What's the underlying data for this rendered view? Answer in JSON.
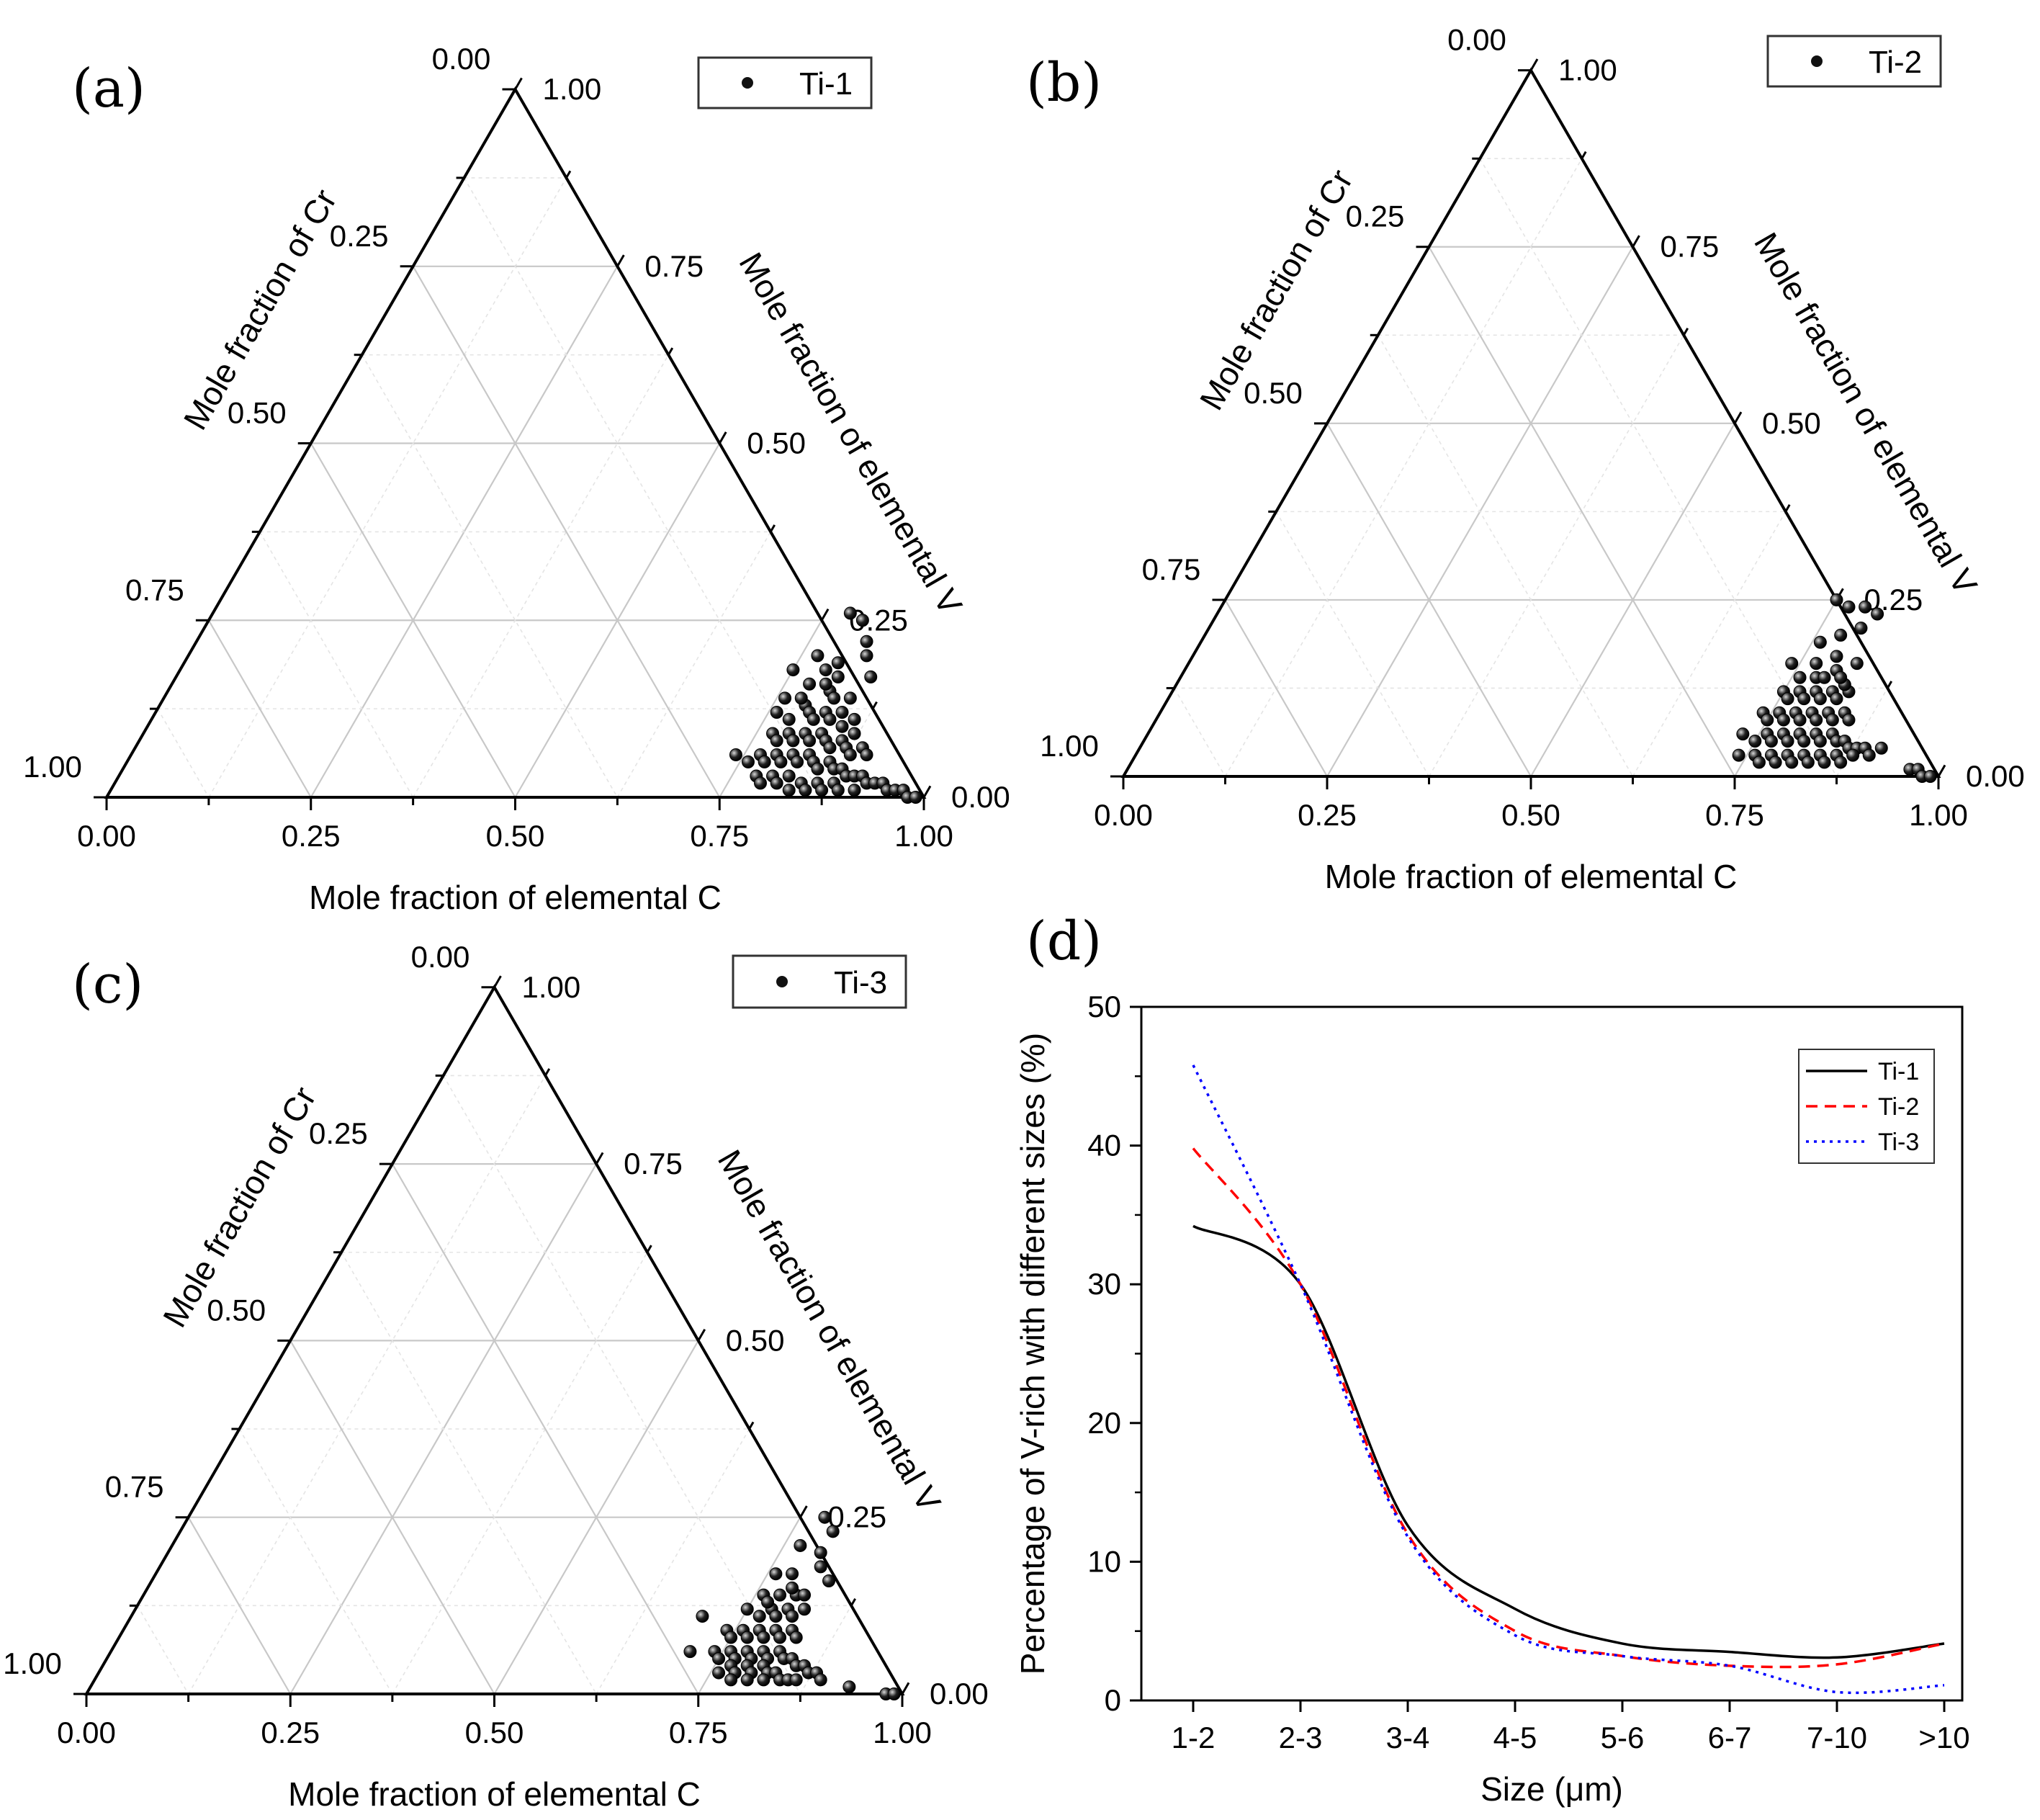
{
  "figure": {
    "panels": [
      "(a)",
      "(b)",
      "(c)",
      "(d)"
    ]
  },
  "chart_data": [
    {
      "panel": "(a)",
      "type": "scatter",
      "subtype": "ternary",
      "legend": [
        "Ti-1"
      ],
      "legend_placement": "top-right",
      "axis_labels": {
        "bottom": "Mole fraction of  elemental C",
        "left": "Mole fraction of Cr",
        "right": "Mole fraction of  elemental V"
      },
      "bottom_ticks": [
        "0.00",
        "0.25",
        "0.50",
        "0.75",
        "1.00"
      ],
      "left_ticks": [
        "0.00",
        "0.25",
        "0.50",
        "0.75",
        "1.00"
      ],
      "right_ticks": [
        "1.00",
        "0.75",
        "0.50",
        "0.25",
        "0.00"
      ],
      "grid": true,
      "points": [
        [
          0.78,
          0.26
        ],
        [
          0.8,
          0.25
        ],
        [
          0.82,
          0.22
        ],
        [
          0.75,
          0.18
        ],
        [
          0.78,
          0.16
        ],
        [
          0.8,
          0.19
        ],
        [
          0.83,
          0.2
        ],
        [
          0.81,
          0.15
        ],
        [
          0.84,
          0.14
        ],
        [
          0.85,
          0.17
        ],
        [
          0.76,
          0.12
        ],
        [
          0.78,
          0.11
        ],
        [
          0.79,
          0.13
        ],
        [
          0.8,
          0.12
        ],
        [
          0.81,
          0.11
        ],
        [
          0.82,
          0.12
        ],
        [
          0.83,
          0.11
        ],
        [
          0.84,
          0.12
        ],
        [
          0.85,
          0.1
        ],
        [
          0.86,
          0.11
        ],
        [
          0.87,
          0.09
        ],
        [
          0.77,
          0.09
        ],
        [
          0.78,
          0.08
        ],
        [
          0.79,
          0.09
        ],
        [
          0.8,
          0.08
        ],
        [
          0.81,
          0.09
        ],
        [
          0.82,
          0.08
        ],
        [
          0.83,
          0.09
        ],
        [
          0.84,
          0.08
        ],
        [
          0.85,
          0.07
        ],
        [
          0.86,
          0.08
        ],
        [
          0.87,
          0.07
        ],
        [
          0.88,
          0.06
        ],
        [
          0.89,
          0.07
        ],
        [
          0.9,
          0.06
        ],
        [
          0.74,
          0.06
        ],
        [
          0.76,
          0.05
        ],
        [
          0.77,
          0.06
        ],
        [
          0.78,
          0.05
        ],
        [
          0.79,
          0.06
        ],
        [
          0.8,
          0.05
        ],
        [
          0.81,
          0.06
        ],
        [
          0.82,
          0.05
        ],
        [
          0.83,
          0.06
        ],
        [
          0.84,
          0.05
        ],
        [
          0.85,
          0.04
        ],
        [
          0.86,
          0.05
        ],
        [
          0.87,
          0.04
        ],
        [
          0.88,
          0.04
        ],
        [
          0.89,
          0.03
        ],
        [
          0.9,
          0.03
        ],
        [
          0.91,
          0.03
        ],
        [
          0.92,
          0.02
        ],
        [
          0.93,
          0.02
        ],
        [
          0.94,
          0.02
        ],
        [
          0.95,
          0.01
        ],
        [
          0.96,
          0.01
        ],
        [
          0.97,
          0.01
        ],
        [
          0.98,
          0.0
        ],
        [
          0.99,
          0.0
        ],
        [
          0.78,
          0.03
        ],
        [
          0.8,
          0.03
        ],
        [
          0.82,
          0.03
        ],
        [
          0.84,
          0.02
        ],
        [
          0.86,
          0.02
        ],
        [
          0.88,
          0.02
        ],
        [
          0.79,
          0.02
        ],
        [
          0.81,
          0.02
        ],
        [
          0.83,
          0.01
        ],
        [
          0.85,
          0.01
        ],
        [
          0.87,
          0.01
        ],
        [
          0.89,
          0.01
        ],
        [
          0.91,
          0.01
        ],
        [
          0.76,
          0.14
        ],
        [
          0.78,
          0.14
        ],
        [
          0.8,
          0.16
        ],
        [
          0.82,
          0.14
        ],
        [
          0.79,
          0.18
        ],
        [
          0.81,
          0.17
        ],
        [
          0.77,
          0.2
        ]
      ]
    },
    {
      "panel": "(b)",
      "type": "scatter",
      "subtype": "ternary",
      "legend": [
        "Ti-2"
      ],
      "legend_placement": "top-right",
      "axis_labels": {
        "bottom": "Mole fraction of  elemental C",
        "left": "Mole fraction of Cr",
        "right": "Mole fraction of  elemental V"
      },
      "bottom_ticks": [
        "0.00",
        "0.25",
        "0.50",
        "0.75",
        "1.00"
      ],
      "left_ticks": [
        "0.00",
        "0.25",
        "0.50",
        "0.75",
        "1.00"
      ],
      "right_ticks": [
        "1.00",
        "0.75",
        "0.50",
        "0.25",
        "0.00"
      ],
      "grid": true,
      "points": [
        [
          0.75,
          0.25
        ],
        [
          0.77,
          0.24
        ],
        [
          0.79,
          0.24
        ],
        [
          0.81,
          0.23
        ],
        [
          0.76,
          0.19
        ],
        [
          0.78,
          0.2
        ],
        [
          0.8,
          0.21
        ],
        [
          0.74,
          0.16
        ],
        [
          0.77,
          0.16
        ],
        [
          0.79,
          0.17
        ],
        [
          0.82,
          0.16
        ],
        [
          0.75,
          0.12
        ],
        [
          0.76,
          0.11
        ],
        [
          0.77,
          0.12
        ],
        [
          0.78,
          0.11
        ],
        [
          0.79,
          0.12
        ],
        [
          0.8,
          0.11
        ],
        [
          0.81,
          0.12
        ],
        [
          0.82,
          0.11
        ],
        [
          0.83,
          0.12
        ],
        [
          0.74,
          0.09
        ],
        [
          0.75,
          0.08
        ],
        [
          0.76,
          0.09
        ],
        [
          0.77,
          0.08
        ],
        [
          0.78,
          0.09
        ],
        [
          0.79,
          0.08
        ],
        [
          0.8,
          0.09
        ],
        [
          0.81,
          0.08
        ],
        [
          0.82,
          0.09
        ],
        [
          0.83,
          0.08
        ],
        [
          0.84,
          0.09
        ],
        [
          0.85,
          0.08
        ],
        [
          0.73,
          0.06
        ],
        [
          0.75,
          0.05
        ],
        [
          0.76,
          0.06
        ],
        [
          0.77,
          0.05
        ],
        [
          0.78,
          0.06
        ],
        [
          0.79,
          0.05
        ],
        [
          0.8,
          0.06
        ],
        [
          0.81,
          0.05
        ],
        [
          0.82,
          0.06
        ],
        [
          0.83,
          0.05
        ],
        [
          0.84,
          0.06
        ],
        [
          0.85,
          0.05
        ],
        [
          0.86,
          0.05
        ],
        [
          0.87,
          0.04
        ],
        [
          0.88,
          0.04
        ],
        [
          0.89,
          0.04
        ],
        [
          0.9,
          0.03
        ],
        [
          0.91,
          0.04
        ],
        [
          0.74,
          0.03
        ],
        [
          0.76,
          0.03
        ],
        [
          0.78,
          0.03
        ],
        [
          0.8,
          0.03
        ],
        [
          0.82,
          0.03
        ],
        [
          0.84,
          0.03
        ],
        [
          0.86,
          0.03
        ],
        [
          0.88,
          0.03
        ],
        [
          0.77,
          0.02
        ],
        [
          0.79,
          0.02
        ],
        [
          0.81,
          0.02
        ],
        [
          0.83,
          0.02
        ],
        [
          0.85,
          0.02
        ],
        [
          0.87,
          0.02
        ],
        [
          0.96,
          0.01
        ],
        [
          0.97,
          0.01
        ],
        [
          0.98,
          0.0
        ],
        [
          0.99,
          0.0
        ],
        [
          0.78,
          0.14
        ],
        [
          0.8,
          0.15
        ],
        [
          0.82,
          0.13
        ],
        [
          0.76,
          0.14
        ],
        [
          0.79,
          0.14
        ],
        [
          0.81,
          0.14
        ]
      ]
    },
    {
      "panel": "(c)",
      "type": "scatter",
      "subtype": "ternary",
      "legend": [
        "Ti-3"
      ],
      "legend_placement": "top-right",
      "axis_labels": {
        "bottom": "Mole fraction of  elemental C",
        "left": "Mole fraction of Cr",
        "right": "Mole fraction of  elemental V"
      },
      "bottom_ticks": [
        "0.00",
        "0.25",
        "0.50",
        "0.75",
        "1.00"
      ],
      "left_ticks": [
        "0.00",
        "0.25",
        "0.50",
        "0.75",
        "1.00"
      ],
      "right_ticks": [
        "1.00",
        "0.75",
        "0.50",
        "0.25",
        "0.00"
      ],
      "grid": true,
      "points": [
        [
          0.78,
          0.25
        ],
        [
          0.8,
          0.23
        ],
        [
          0.77,
          0.21
        ],
        [
          0.8,
          0.2
        ],
        [
          0.76,
          0.17
        ],
        [
          0.78,
          0.17
        ],
        [
          0.81,
          0.18
        ],
        [
          0.83,
          0.16
        ],
        [
          0.76,
          0.14
        ],
        [
          0.78,
          0.14
        ],
        [
          0.8,
          0.14
        ],
        [
          0.7,
          0.11
        ],
        [
          0.75,
          0.12
        ],
        [
          0.77,
          0.11
        ],
        [
          0.78,
          0.12
        ],
        [
          0.79,
          0.11
        ],
        [
          0.8,
          0.12
        ],
        [
          0.81,
          0.11
        ],
        [
          0.82,
          0.12
        ],
        [
          0.74,
          0.09
        ],
        [
          0.75,
          0.08
        ],
        [
          0.76,
          0.09
        ],
        [
          0.77,
          0.08
        ],
        [
          0.78,
          0.09
        ],
        [
          0.79,
          0.08
        ],
        [
          0.8,
          0.09
        ],
        [
          0.81,
          0.08
        ],
        [
          0.82,
          0.09
        ],
        [
          0.83,
          0.08
        ],
        [
          0.71,
          0.06
        ],
        [
          0.74,
          0.06
        ],
        [
          0.75,
          0.05
        ],
        [
          0.76,
          0.06
        ],
        [
          0.77,
          0.05
        ],
        [
          0.78,
          0.06
        ],
        [
          0.79,
          0.05
        ],
        [
          0.8,
          0.06
        ],
        [
          0.81,
          0.05
        ],
        [
          0.82,
          0.06
        ],
        [
          0.83,
          0.05
        ],
        [
          0.84,
          0.05
        ],
        [
          0.85,
          0.04
        ],
        [
          0.86,
          0.04
        ],
        [
          0.87,
          0.03
        ],
        [
          0.88,
          0.03
        ],
        [
          0.89,
          0.02
        ],
        [
          0.76,
          0.03
        ],
        [
          0.77,
          0.04
        ],
        [
          0.78,
          0.03
        ],
        [
          0.79,
          0.04
        ],
        [
          0.8,
          0.03
        ],
        [
          0.81,
          0.04
        ],
        [
          0.82,
          0.03
        ],
        [
          0.83,
          0.03
        ],
        [
          0.84,
          0.02
        ],
        [
          0.85,
          0.02
        ],
        [
          0.86,
          0.02
        ],
        [
          0.78,
          0.02
        ],
        [
          0.8,
          0.02
        ],
        [
          0.82,
          0.02
        ],
        [
          0.93,
          0.01
        ],
        [
          0.98,
          0.0
        ],
        [
          0.99,
          0.0
        ],
        [
          0.79,
          0.15
        ],
        [
          0.81,
          0.14
        ],
        [
          0.77,
          0.13
        ]
      ]
    },
    {
      "panel": "(d)",
      "type": "line",
      "xlabel": "Size (μm)",
      "ylabel": "Percentage of V-rich with different sizes (%)",
      "categories": [
        "1-2",
        "2-3",
        "3-4",
        "4-5",
        "5-6",
        "6-7",
        "7-10",
        ">10"
      ],
      "ylim": [
        0,
        50
      ],
      "yticks": [
        "0",
        "10",
        "20",
        "30",
        "40",
        "50"
      ],
      "legend_placement": "top-right",
      "series": [
        {
          "name": "Ti-1",
          "color": "#000000",
          "dash": "solid",
          "values": [
            34.2,
            30.0,
            12.6,
            6.6,
            4.1,
            3.5,
            3.1,
            4.1
          ]
        },
        {
          "name": "Ti-2",
          "color": "#ff0000",
          "dash": "dashed",
          "values": [
            39.8,
            30.0,
            12.0,
            5.0,
            3.2,
            2.5,
            2.6,
            4.1
          ]
        },
        {
          "name": "Ti-3",
          "color": "#0000ff",
          "dash": "dotted",
          "values": [
            45.8,
            30.0,
            11.8,
            4.7,
            3.2,
            2.5,
            0.6,
            1.1
          ]
        }
      ]
    }
  ]
}
